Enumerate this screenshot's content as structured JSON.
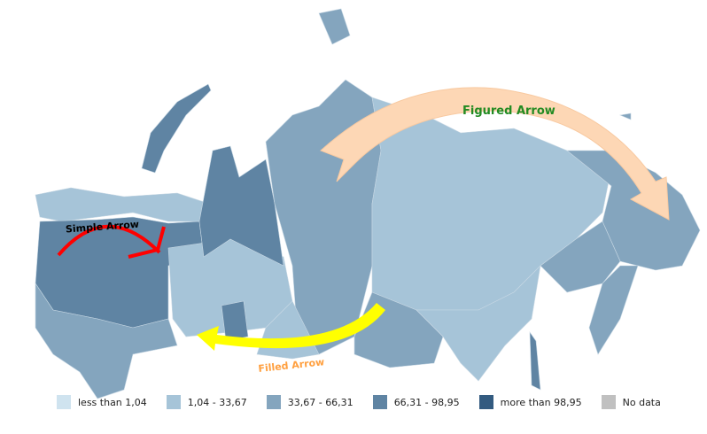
{
  "colors": {
    "c1": "#cfe3ef",
    "c2": "#a6c4d8",
    "c3": "#84a5be",
    "c4": "#5f84a3",
    "c5": "#335b80",
    "nodata": "#c0c0c0"
  },
  "legend": [
    {
      "label": "less than 1,04",
      "color": "#cfe3ef"
    },
    {
      "label": "1,04 - 33,67",
      "color": "#a6c4d8"
    },
    {
      "label": "33,67 - 66,31",
      "color": "#84a5be"
    },
    {
      "label": "66,31 - 98,95",
      "color": "#5f84a3"
    },
    {
      "label": "more than 98,95",
      "color": "#335b80"
    },
    {
      "label": "No data",
      "color": "#c0c0c0"
    }
  ],
  "annotations": {
    "simple": "Simple Arrow",
    "figured": "Figured Arrow",
    "filled": "Filled Arrow"
  }
}
